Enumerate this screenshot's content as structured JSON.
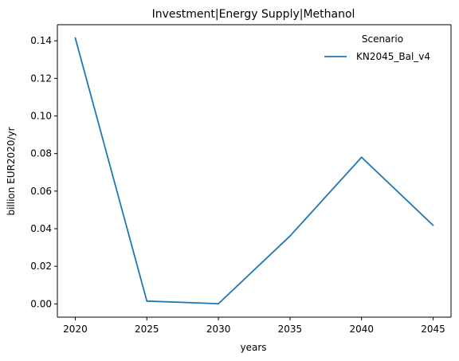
{
  "chart_data": {
    "type": "line",
    "title": "Investment|Energy Supply|Methanol",
    "xlabel": "years",
    "ylabel": "billion EUR2020/yr",
    "x": [
      2020,
      2025,
      2030,
      2035,
      2040,
      2045
    ],
    "series": [
      {
        "name": "KN2045_Bal_v4",
        "values": [
          0.1415,
          0.0015,
          0.0001,
          0.0361,
          0.078,
          0.0418
        ],
        "color": "#1f77b4"
      }
    ],
    "xticks": [
      "2020",
      "2025",
      "2030",
      "2035",
      "2040",
      "2045"
    ],
    "yticks": [
      "0.00",
      "0.02",
      "0.04",
      "0.06",
      "0.08",
      "0.10",
      "0.12",
      "0.14"
    ],
    "xlim": [
      2018.75,
      2046.25
    ],
    "ylim": [
      -0.00707,
      0.14856
    ],
    "grid": false,
    "legend": {
      "title": "Scenario",
      "placement": "upper-right",
      "frame": false
    }
  }
}
